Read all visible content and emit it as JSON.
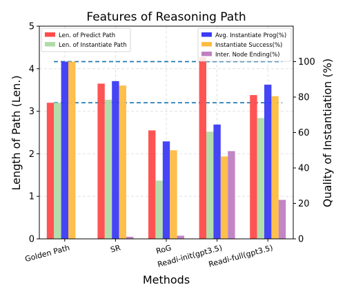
{
  "chart_data": {
    "type": "bar",
    "title": "Features of Reasoning Path",
    "xlabel": "Methods",
    "ylabel_left": "Length of Path (Len.)",
    "ylabel_right": "Quality of Instantiation (%)",
    "categories": [
      "Golden Path",
      "SR",
      "RoG",
      "Readi-init(gpt3.5)",
      "Readi-full(gpt3.5)"
    ],
    "ylim_left": [
      0,
      5
    ],
    "ylim_right": [
      0,
      120
    ],
    "yticks_left": [
      "0",
      "1",
      "2",
      "3",
      "4",
      "5"
    ],
    "yticks_right": [
      "0",
      "20",
      "40",
      "60",
      "80",
      "100"
    ],
    "grid": true,
    "series": [
      {
        "name": "Len. of Predict Path",
        "axis": "left",
        "color": "#ff4b4b",
        "values": [
          3.2,
          3.65,
          2.55,
          4.27,
          3.38
        ]
      },
      {
        "name": "Len. of Instantiate Path",
        "axis": "left",
        "color": "#b0dba8",
        "values": [
          3.2,
          3.27,
          1.37,
          2.52,
          2.84
        ]
      },
      {
        "name": "Avg. Instantiate Prog(%)",
        "axis": "right",
        "color": "#3b3bf5",
        "values": [
          100,
          89,
          55,
          64.5,
          87
        ]
      },
      {
        "name": "Instantiate Success(%)",
        "axis": "right",
        "color": "#ffbc42",
        "values": [
          100,
          86.5,
          50,
          46.5,
          80.5
        ]
      },
      {
        "name": "Inter. Node Ending(%)",
        "axis": "right",
        "color": "#bf7fc2",
        "values": [
          0,
          1.2,
          1.8,
          49.5,
          22
        ]
      }
    ],
    "reference_lines": [
      {
        "axis": "left",
        "value": 3.2,
        "color": "#1f77b4",
        "style": "dashed"
      },
      {
        "axis": "right",
        "value": 100,
        "color": "#1f77b4",
        "style": "dashed"
      }
    ],
    "legend_left_placement": "upper-left",
    "legend_right_placement": "upper-right"
  }
}
